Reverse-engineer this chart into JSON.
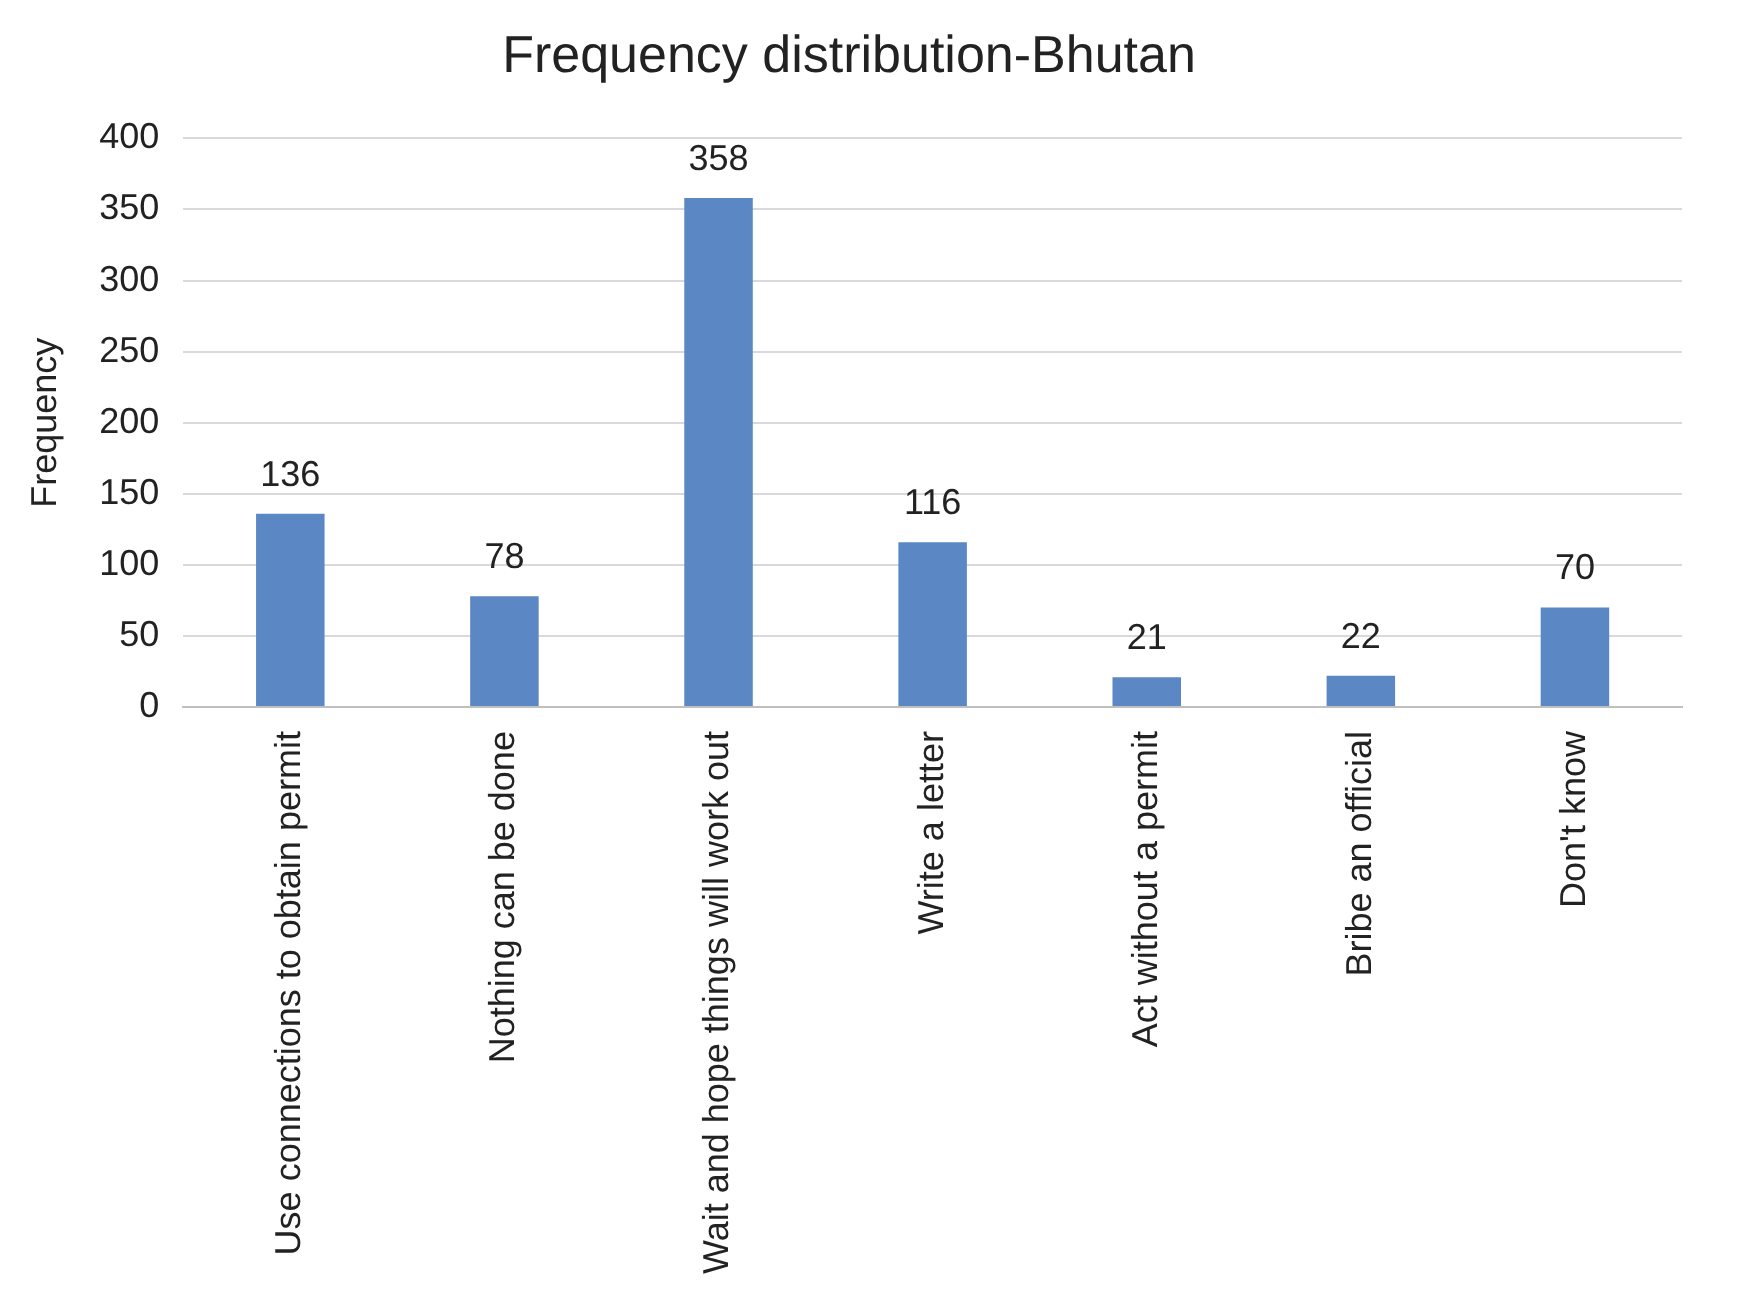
{
  "chart_data": {
    "type": "bar",
    "title": "Frequency distribution-Bhutan",
    "ylabel": "Frequency",
    "categories": [
      "Use connections to obtain permit",
      "Nothing can be done",
      "Wait and hope things will work out",
      "Write a letter",
      "Act without a permit",
      "Bribe an official",
      "Don't know"
    ],
    "values": [
      136,
      78,
      358,
      116,
      21,
      22,
      70
    ],
    "color": "#5b87c5",
    "ylim": [
      0,
      400
    ],
    "yticks": [
      0,
      50,
      100,
      150,
      200,
      250,
      300,
      350,
      400
    ],
    "grid": "y",
    "data_labels": true,
    "legend": false
  }
}
